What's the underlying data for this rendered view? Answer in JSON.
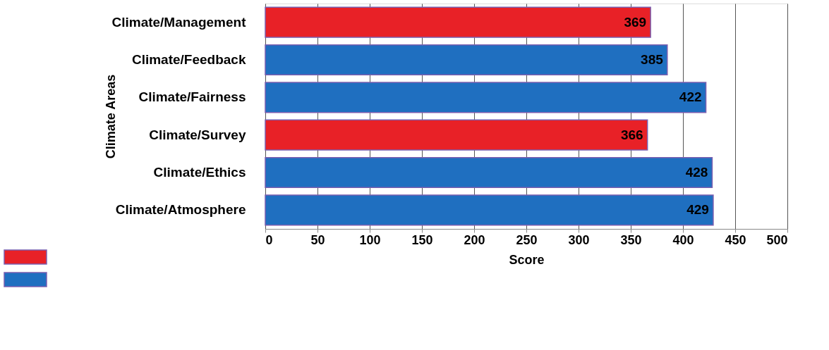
{
  "chart_data": {
    "type": "bar",
    "orientation": "horizontal",
    "ylabel": "Climate Areas",
    "xlabel": "Score",
    "categories": [
      "Climate/Management",
      "Climate/Feedback",
      "Climate/Fairness",
      "Climate/Survey",
      "Climate/Ethics",
      "Climate/Atmosphere"
    ],
    "values": [
      369,
      385,
      422,
      366,
      428,
      429
    ],
    "colors": [
      "#e82127",
      "#1f6fc0",
      "#1f6fc0",
      "#e82127",
      "#1f6fc0",
      "#1f6fc0"
    ],
    "xlim": [
      0,
      500
    ],
    "xticks": [
      0,
      50,
      100,
      150,
      200,
      250,
      300,
      350,
      400,
      450,
      500
    ],
    "grid": "x",
    "data_labels": true
  }
}
